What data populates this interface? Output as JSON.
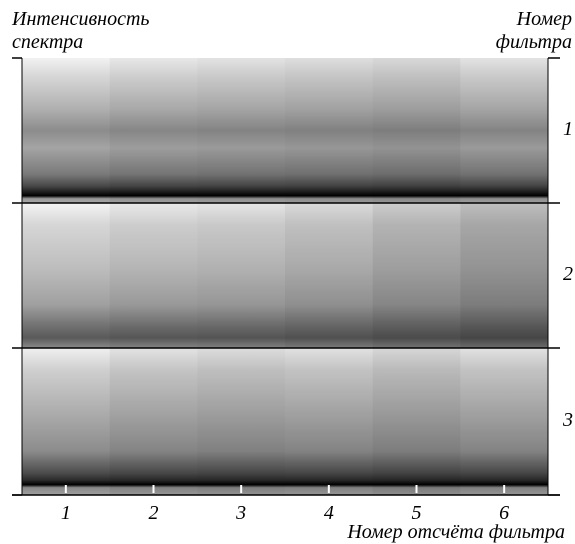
{
  "figure": {
    "y_label": [
      "Интенсивность",
      "спектра"
    ],
    "right_label": [
      "Номер",
      "фильтра"
    ],
    "x_label": "Номер отсчёта фильтра",
    "x_ticks": [
      "1",
      "2",
      "3",
      "4",
      "5",
      "6"
    ],
    "panels": [
      "1",
      "2",
      "3"
    ]
  }
}
